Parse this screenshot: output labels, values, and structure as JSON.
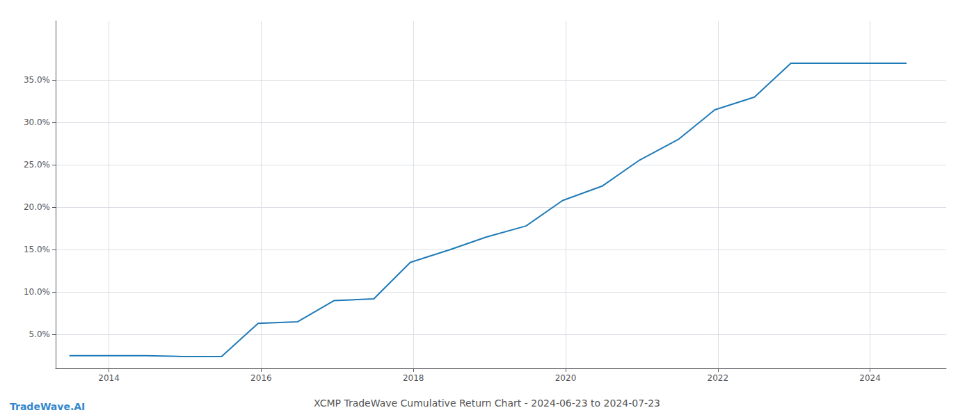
{
  "chart_data": {
    "type": "line",
    "title": "XCMP TradeWave Cumulative Return Chart - 2024-06-23 to 2024-07-23",
    "annotations": [
      "TradeWave.AI"
    ],
    "x": [
      2013.48,
      2014.0,
      2014.48,
      2014.96,
      2015.0,
      2015.48,
      2015.96,
      2016.48,
      2016.96,
      2017.48,
      2017.96,
      2018.48,
      2018.96,
      2019.48,
      2019.96,
      2020.48,
      2020.96,
      2021.48,
      2021.96,
      2022.48,
      2022.96,
      2023.0,
      2023.48,
      2023.96,
      2024.48
    ],
    "values": [
      2.5,
      2.5,
      2.5,
      2.4,
      2.4,
      2.4,
      6.3,
      6.5,
      9.0,
      9.2,
      13.5,
      15.0,
      16.5,
      17.8,
      20.8,
      22.5,
      25.5,
      28.0,
      31.5,
      33.0,
      37.0,
      37.0,
      37.0,
      37.0,
      37.0
    ],
    "color": "#1f7ab8",
    "xlim": [
      2013.3,
      2025.0
    ],
    "ylim": [
      1.0,
      42.0
    ],
    "xticks": [
      2014,
      2016,
      2018,
      2020,
      2022,
      2024
    ],
    "yticks": [
      {
        "value": 5.0,
        "label": "5.0%"
      },
      {
        "value": 10.0,
        "label": "10.0%"
      },
      {
        "value": 15.0,
        "label": "15.0%"
      },
      {
        "value": 20.0,
        "label": "20.0%"
      },
      {
        "value": 25.0,
        "label": "25.0%"
      },
      {
        "value": 30.0,
        "label": "30.0%"
      },
      {
        "value": 35.0,
        "label": "35.0%"
      }
    ],
    "grid": true
  }
}
